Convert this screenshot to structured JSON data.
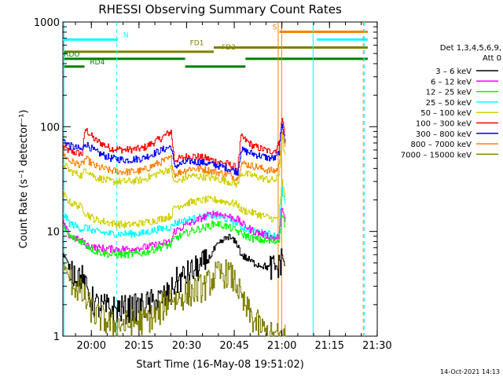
{
  "chart_data": {
    "type": "line",
    "title": "RHESSI Observing Summary Count Rates",
    "xlabel": "Start Time (16-May-08 19:51:02)",
    "ylabel": "Count Rate (s⁻¹ detector⁻¹)",
    "yscale": "log",
    "ylim": [
      1,
      1000
    ],
    "xlim_minutes": [
      0,
      99
    ],
    "x_ticks": [
      "20:00",
      "20:15",
      "20:30",
      "20:45",
      "21:00",
      "21:15",
      "21:30"
    ],
    "x_tick_minutes": [
      8.97,
      23.97,
      38.97,
      53.97,
      68.97,
      83.97,
      98.97
    ],
    "y_ticks": [
      "1",
      "10",
      "100",
      "1000"
    ],
    "y_tick_values": [
      1,
      10,
      100,
      1000
    ],
    "legend": {
      "placement": "right",
      "header": [
        "Det 1,3,4,5,6,9,",
        "Att 0"
      ],
      "entries": [
        {
          "label": "3 – 6 keV",
          "color": "#000000"
        },
        {
          "label": "6 – 12 keV",
          "color": "#ff00ff"
        },
        {
          "label": "12 – 25 keV",
          "color": "#00ff00"
        },
        {
          "label": "25 – 50 keV",
          "color": "#00ffff"
        },
        {
          "label": "50 – 100 keV",
          "color": "#d0d000"
        },
        {
          "label": "100 – 300 keV",
          "color": "#ff0000"
        },
        {
          "label": "300 – 800 keV",
          "color": "#0000ff"
        },
        {
          "label": "800 – 7000 keV",
          "color": "#ff8000"
        },
        {
          "label": "7000 – 15000 keV",
          "color": "#808000"
        }
      ]
    },
    "series": [
      {
        "color": "#ff0000",
        "x": [
          0,
          2,
          6,
          7,
          10,
          15,
          20,
          25,
          30,
          34,
          35,
          40,
          45,
          48,
          52,
          55,
          56,
          60,
          65,
          67,
          68,
          69,
          70
        ],
        "y": [
          65,
          58,
          55,
          95,
          75,
          62,
          60,
          62,
          75,
          90,
          48,
          53,
          50,
          47,
          44,
          40,
          80,
          65,
          58,
          60,
          70,
          120,
          80
        ]
      },
      {
        "color": "#0000ff",
        "x": [
          0,
          2,
          6,
          7,
          10,
          15,
          20,
          25,
          30,
          34,
          35,
          40,
          45,
          48,
          52,
          55,
          56,
          60,
          65,
          67,
          68,
          69,
          70
        ],
        "y": [
          75,
          66,
          60,
          70,
          58,
          50,
          48,
          50,
          58,
          65,
          42,
          47,
          45,
          43,
          40,
          37,
          60,
          55,
          50,
          50,
          58,
          110,
          72
        ]
      },
      {
        "color": "#ff8000",
        "x": [
          0,
          2,
          6,
          7,
          10,
          15,
          20,
          25,
          30,
          34,
          35,
          40,
          45,
          48,
          52,
          55,
          56,
          60,
          65,
          67,
          68,
          69,
          70
        ],
        "y": [
          55,
          47,
          43,
          50,
          42,
          38,
          37,
          38,
          45,
          50,
          35,
          40,
          39,
          37,
          35,
          32,
          45,
          42,
          38,
          38,
          42,
          90,
          60
        ]
      },
      {
        "color": "#d0d000",
        "x": [
          0,
          2,
          6,
          7,
          10,
          15,
          20,
          25,
          30,
          34,
          35,
          40,
          45,
          48,
          52,
          55,
          56,
          60,
          65,
          67,
          68,
          69,
          70
        ],
        "y": [
          45,
          38,
          34,
          40,
          33,
          30,
          30,
          31,
          36,
          40,
          29,
          34,
          33,
          32,
          30,
          28,
          36,
          34,
          31,
          31,
          35,
          80,
          50
        ]
      },
      {
        "color": "#d0d000",
        "x": [
          0,
          2,
          6,
          7,
          10,
          15,
          20,
          25,
          30,
          34,
          35,
          40,
          45,
          48,
          52,
          55,
          56,
          60,
          65,
          67,
          68,
          69,
          70
        ],
        "y": [
          23,
          19,
          17,
          15,
          13,
          12,
          11.5,
          12,
          13,
          14,
          17,
          19,
          20,
          20,
          19,
          18,
          16,
          15,
          13.5,
          13,
          14,
          30,
          20
        ]
      },
      {
        "color": "#00ffff",
        "x": [
          0,
          2,
          6,
          7,
          10,
          15,
          20,
          25,
          30,
          34,
          35,
          40,
          45,
          48,
          52,
          55,
          56,
          60,
          65,
          67,
          68,
          69,
          70
        ],
        "y": [
          15,
          12,
          10.5,
          11,
          10,
          9.5,
          9.5,
          9.6,
          10.5,
          11,
          12,
          13,
          14,
          14,
          13,
          12,
          11,
          10,
          9.5,
          9,
          10,
          25,
          18
        ]
      },
      {
        "color": "#ff00ff",
        "x": [
          0,
          2,
          6,
          7,
          10,
          15,
          20,
          25,
          30,
          34,
          35,
          40,
          45,
          48,
          52,
          55,
          56,
          60,
          65,
          67,
          68,
          69,
          70
        ],
        "y": [
          12,
          9,
          8,
          7.5,
          7,
          6.8,
          6.8,
          7,
          7.5,
          8,
          10,
          12,
          14,
          15,
          14,
          13,
          12,
          10,
          9,
          8.5,
          9,
          18,
          12
        ]
      },
      {
        "color": "#00ff00",
        "x": [
          0,
          2,
          6,
          7,
          10,
          15,
          20,
          25,
          30,
          34,
          35,
          40,
          45,
          48,
          52,
          55,
          56,
          60,
          65,
          67,
          68,
          69,
          70
        ],
        "y": [
          11,
          9,
          8,
          7.5,
          6.5,
          6,
          6,
          6.2,
          7,
          7.5,
          8.5,
          10,
          11,
          12,
          11,
          10,
          9.5,
          8.5,
          8,
          8,
          8.5,
          15,
          11
        ]
      },
      {
        "color": "#000000",
        "x": [
          0,
          2,
          6,
          7,
          10,
          15,
          20,
          25,
          30,
          34,
          35,
          40,
          45,
          48,
          52,
          55,
          56,
          60,
          65,
          67,
          68,
          69,
          70
        ],
        "y": [
          6,
          4.5,
          3.5,
          2.8,
          2,
          1.8,
          1.8,
          1.9,
          2.2,
          2.5,
          3.2,
          4,
          5,
          7,
          9,
          7.5,
          6,
          5,
          4.5,
          4.5,
          4.5,
          6,
          4.5
        ]
      },
      {
        "color": "#808000",
        "x": [
          0,
          2,
          6,
          7,
          10,
          15,
          20,
          25,
          30,
          34,
          35,
          40,
          45,
          48,
          52,
          55,
          56,
          60,
          65,
          67,
          68,
          69,
          70
        ],
        "y": [
          5,
          3.5,
          2.5,
          2.2,
          1.6,
          1.3,
          1.3,
          1.4,
          1.6,
          2.5,
          2.2,
          2.6,
          3,
          3.8,
          4,
          3,
          2.2,
          1.4,
          1,
          1,
          1,
          1,
          1
        ]
      }
    ],
    "vertical_lines": [
      {
        "x": 0.3,
        "color": "#00ffff",
        "style": "solid"
      },
      {
        "x": 17.0,
        "color": "#00ffff",
        "style": "dashed"
      },
      {
        "x": 67.8,
        "color": "#ff8000",
        "style": "solid"
      },
      {
        "x": 68.9,
        "color": "#ff8000",
        "style": "solid"
      },
      {
        "x": 78.8,
        "color": "#00ffff",
        "style": "solid"
      },
      {
        "x": 94.6,
        "color": "#ff8000",
        "style": "dashed"
      },
      {
        "x": 95.0,
        "color": "#00ffff",
        "style": "dashed"
      }
    ],
    "flag_bars": [
      {
        "label": "N",
        "color": "#00ffff",
        "y": 680,
        "label_x": 19,
        "segments": [
          [
            0,
            17.3
          ],
          [
            80,
            96
          ]
        ]
      },
      {
        "label": "S",
        "color": "#ff8000",
        "y": 805,
        "label_x": 66,
        "segments": [
          [
            68.2,
            96
          ]
        ]
      },
      {
        "label": "FD1",
        "color": "#808000",
        "y": 570,
        "label_x": 40,
        "segments": [
          [
            47.5,
            96
          ]
        ]
      },
      {
        "label": "FD2",
        "color": "#808000",
        "y": 520,
        "label_x": 50,
        "segments": [
          [
            0,
            47.5
          ]
        ]
      },
      {
        "label": "RDO",
        "color": "#008000",
        "y": 445,
        "label_x": 0.3,
        "segments": [
          [
            0,
            38.5
          ],
          [
            57.5,
            96
          ]
        ]
      },
      {
        "label": "RD4",
        "color": "#008000",
        "y": 375,
        "label_x": 8.5,
        "segments": [
          [
            0,
            6.8
          ],
          [
            38.5,
            57.5
          ]
        ]
      }
    ]
  },
  "footer": {
    "timestamp": "14-Oct-2021 14:13"
  }
}
